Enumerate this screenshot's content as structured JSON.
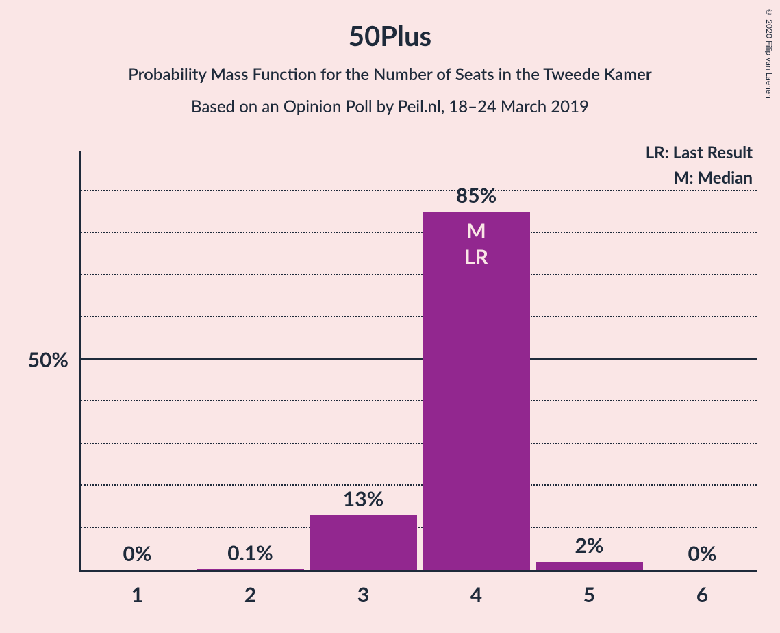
{
  "copyright": "© 2020 Filip van Laenen",
  "title": "50Plus",
  "subtitle": "Probability Mass Function for the Number of Seats in the Tweede Kamer",
  "subtitle2": "Based on an Opinion Poll by Peil.nl, 18–24 March 2019",
  "legend": {
    "lr": "LR: Last Result",
    "m": "M: Median"
  },
  "chart": {
    "type": "bar",
    "background_color": "#fae6e6",
    "bar_color": "#92278f",
    "text_color": "#1e2a3a",
    "axis_color": "#1e2a3a",
    "grid_color": "#1e2a3a",
    "ymax": 100,
    "ytick_major": 50,
    "ytick_minor": 10,
    "ylabel_50": "50%",
    "bar_width_ratio": 0.95,
    "font_family": "Segoe UI",
    "title_fontsize": 40,
    "subtitle_fontsize": 24,
    "axis_fontsize": 30,
    "legend_fontsize": 24,
    "categories": [
      "1",
      "2",
      "3",
      "4",
      "5",
      "6"
    ],
    "values": [
      0,
      0.1,
      13,
      85,
      2,
      0
    ],
    "value_labels": [
      "0%",
      "0.1%",
      "13%",
      "85%",
      "2%",
      "0%"
    ],
    "annotations": {
      "4": [
        "M",
        "LR"
      ]
    }
  }
}
